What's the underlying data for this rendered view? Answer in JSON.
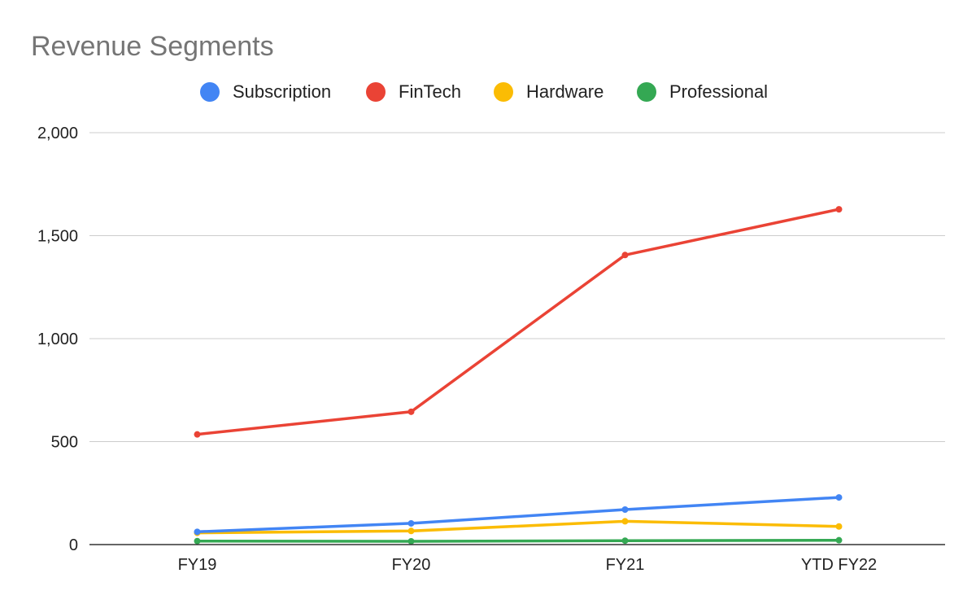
{
  "chart_data": {
    "type": "line",
    "title": "Revenue Segments",
    "xlabel": "",
    "ylabel": "",
    "categories": [
      "FY19",
      "FY20",
      "FY21",
      "YTD FY22"
    ],
    "ylim": [
      0,
      2000
    ],
    "yticks": [
      0,
      500,
      1000,
      1500,
      2000
    ],
    "ytick_labels": [
      "0",
      "500",
      "1,000",
      "1,500",
      "2,000"
    ],
    "grid": true,
    "legend_position": "top",
    "series": [
      {
        "name": "Subscription",
        "color": "#4285F4",
        "values": [
          62,
          103,
          170,
          229
        ]
      },
      {
        "name": "FinTech",
        "color": "#EA4335",
        "values": [
          535,
          645,
          1406,
          1628
        ]
      },
      {
        "name": "Hardware",
        "color": "#FBBC04",
        "values": [
          57,
          66,
          113,
          88
        ]
      },
      {
        "name": "Professional",
        "color": "#34A853",
        "values": [
          17,
          16,
          19,
          21
        ]
      }
    ]
  }
}
